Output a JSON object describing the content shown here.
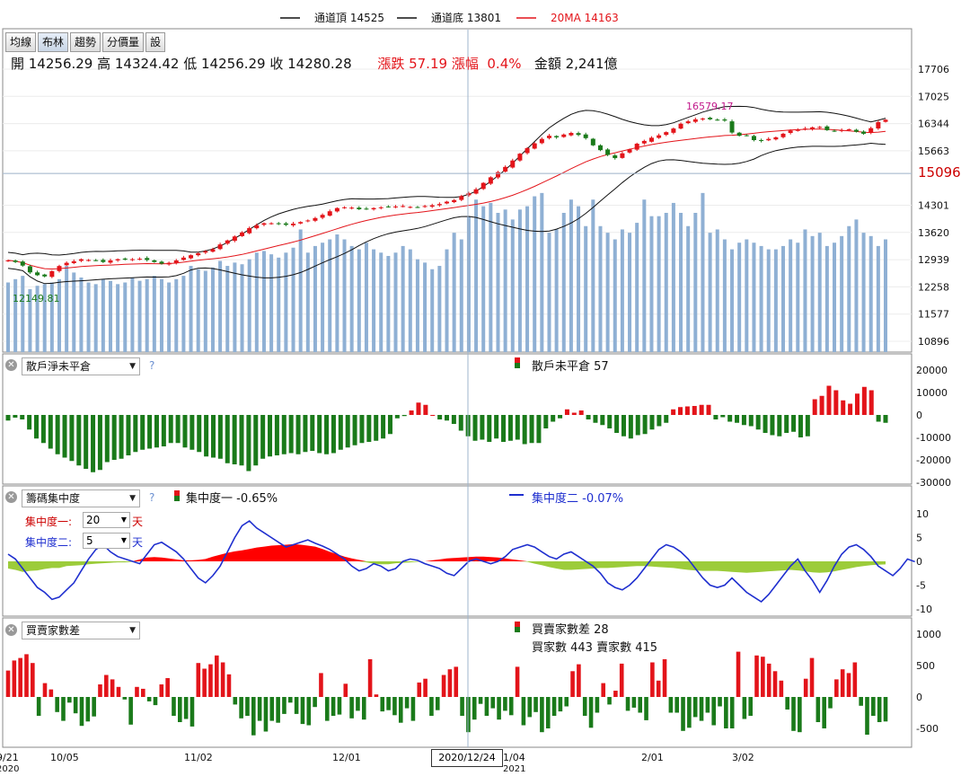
{
  "top_legend": [
    {
      "label": "通道頂 14525",
      "color": "#111111"
    },
    {
      "label": "通道底 13801",
      "color": "#111111"
    },
    {
      "label": "20MA 14163",
      "color": "#e3141a"
    }
  ],
  "tabs": [
    "均線",
    "布林",
    "趨勢",
    "分價量",
    "設"
  ],
  "ohlc": {
    "open": "開 14256.29",
    "high": "高 14324.42",
    "low": "低 14256.29",
    "close": "收 14280.28",
    "change": "漲跌 57.19",
    "pct_label": "漲幅",
    "pct": "0.4%",
    "amount": "金額 2,241億"
  },
  "panels": {
    "p2": {
      "select": "散戶淨未平倉",
      "legend": "散戶未平倉 57",
      "help": "?"
    },
    "p3": {
      "select": "籌碼集中度",
      "legend1": "集中度一 -0.65%",
      "legend2": "集中度二 -0.07%",
      "param1_label": "集中度一:",
      "param1_value": "20",
      "param2_label": "集中度二:",
      "param2_value": "5",
      "unit": "天",
      "help": "?"
    },
    "p4": {
      "select": "買賣家數差",
      "legend1": "買賣家數差 28",
      "legend2": "買家數 443 賣家數 415"
    }
  },
  "cursor_date": "2020/12/24",
  "colors": {
    "up": "#e3141a",
    "down": "#1a7a1a",
    "volume": "#8fb0d4",
    "band": "#111111",
    "ma": "#e3141a",
    "conc2": "#1f2fcf",
    "conc_neg": "#9ccc3a",
    "conc_pos": "#ff0000",
    "label": "#c1188a",
    "crosshair": "#9fb4cc"
  },
  "chart_data": [
    {
      "type": "candlestick",
      "name": "price",
      "y_ticks": [
        "17706",
        "17025",
        "16344",
        "15663",
        "15096",
        "14301",
        "13620",
        "12939",
        "12258",
        "11577",
        "10896"
      ],
      "cursor_value": "15096",
      "annotations": [
        "16579.17",
        "12149.81"
      ],
      "x_labels": [
        "9/21",
        "10/05",
        "11/02",
        "12/01",
        "2020/12/24",
        "1/04",
        "2/01",
        "3/02"
      ],
      "x_year_labels": [
        "2020",
        "2021"
      ],
      "close": [
        12920,
        12880,
        12790,
        12620,
        12550,
        12520,
        12650,
        12780,
        12860,
        12900,
        12950,
        12930,
        12920,
        12880,
        12920,
        12950,
        12940,
        12950,
        12960,
        12930,
        12880,
        12840,
        12860,
        12920,
        12990,
        13050,
        13100,
        13150,
        13200,
        13320,
        13420,
        13520,
        13620,
        13730,
        13800,
        13850,
        13850,
        13830,
        13810,
        13840,
        13880,
        13920,
        13980,
        14060,
        14150,
        14230,
        14250,
        14240,
        14200,
        14210,
        14230,
        14250,
        14260,
        14270,
        14280,
        14260,
        14250,
        14280,
        14300,
        14330,
        14390,
        14430,
        14530,
        14600,
        14700,
        14860,
        15000,
        15130,
        15260,
        15420,
        15590,
        15730,
        15850,
        15960,
        16040,
        16000,
        16070,
        16110,
        16060,
        15980,
        15800,
        15680,
        15560,
        15480,
        15600,
        15700,
        15840,
        15910,
        15990,
        16050,
        16130,
        16220,
        16340,
        16400,
        16450,
        16470,
        16450,
        16440,
        16420,
        16120,
        16040,
        16050,
        15930,
        15910,
        15960,
        16000,
        16090,
        16170,
        16190,
        16220,
        16250,
        16260,
        16180,
        16160,
        16180,
        16200,
        16140,
        16090,
        16230,
        16380,
        16440
      ],
      "volume": [
        2100,
        2200,
        2300,
        1900,
        2000,
        2050,
        2100,
        2200,
        2600,
        2400,
        2250,
        2100,
        2050,
        2200,
        2150,
        2050,
        2100,
        2250,
        2150,
        2200,
        2300,
        2200,
        2100,
        2200,
        2300,
        2600,
        2500,
        2450,
        2550,
        2750,
        2600,
        2700,
        2650,
        2800,
        3000,
        3050,
        2950,
        2850,
        3000,
        3150,
        3700,
        3000,
        3200,
        3300,
        3400,
        3550,
        3400,
        3200,
        3100,
        3300,
        3100,
        3000,
        2900,
        3000,
        3200,
        3100,
        2800,
        2700,
        2500,
        2600,
        3100,
        3600,
        3400,
        4100,
        4600,
        4400,
        4500,
        4200,
        4300,
        4000,
        4300,
        4400,
        4700,
        4800,
        3600,
        3700,
        4200,
        4600,
        4400,
        3800,
        4600,
        3800,
        3600,
        3400,
        3700,
        3600,
        3900,
        4600,
        4100,
        4100,
        4200,
        4500,
        4200,
        3800,
        4200,
        4800,
        3600,
        3700,
        3400,
        3100,
        3300,
        3400,
        3300,
        3200,
        3100,
        3100,
        3200,
        3400,
        3300,
        3700,
        3500,
        3600,
        3200,
        3300,
        3500,
        3800,
        4000,
        3600,
        3500,
        3200,
        3400
      ]
    },
    {
      "type": "bar",
      "name": "散戶淨未平倉",
      "y_ticks": [
        "20000",
        "10000",
        "0",
        "-10000",
        "-20000",
        "-30000"
      ],
      "values": [
        -2500,
        -1200,
        -2000,
        -6500,
        -10500,
        -12500,
        -15000,
        -17500,
        -19000,
        -20500,
        -22500,
        -24000,
        -25500,
        -24500,
        -21000,
        -20000,
        -19500,
        -18000,
        -16500,
        -15500,
        -15000,
        -14500,
        -14000,
        -12500,
        -12500,
        -14500,
        -15500,
        -16500,
        -18500,
        -19000,
        -19500,
        -21500,
        -22000,
        -22500,
        -25000,
        -22500,
        -19500,
        -18500,
        -18000,
        -17500,
        -17000,
        -17500,
        -16500,
        -16000,
        -17000,
        -17500,
        -17000,
        -15500,
        -14500,
        -13500,
        -12500,
        -12000,
        -11500,
        -10500,
        -8500,
        -1500,
        -500,
        2000,
        5500,
        4500,
        0,
        -2000,
        -2500,
        -4000,
        -7000,
        -9500,
        -11500,
        -11000,
        -12000,
        -10500,
        -12000,
        -11500,
        -11000,
        -13000,
        -12500,
        -12500,
        -6000,
        -3000,
        -1500,
        2500,
        1000,
        2000,
        -2000,
        -3500,
        -4500,
        -6000,
        -8000,
        -9500,
        -10500,
        -9000,
        -8500,
        -6500,
        -5000,
        -3500,
        2500,
        3500,
        3800,
        4000,
        4500,
        4500,
        -2000,
        -1000,
        -3000,
        -3500,
        -4500,
        -5000,
        -6500,
        -8000,
        -9000,
        -9500,
        -8000,
        -7500,
        -10000,
        -9500,
        7000,
        8500,
        13000,
        11000,
        6500,
        5000,
        9500,
        12500,
        11000,
        -3000,
        -3500
      ]
    },
    {
      "type": "area+line",
      "name": "籌碼集中度",
      "y_ticks": [
        "10",
        "5",
        "0",
        "-5",
        "-10"
      ],
      "series": [
        {
          "name": "集中度一",
          "values": [
            -1.5,
            -1.8,
            -2.2,
            -2.0,
            -1.9,
            -1.6,
            -1.4,
            -1.4,
            -1.0,
            -0.9,
            -0.8,
            -0.6,
            -0.5,
            -0.4,
            -0.3,
            -0.2,
            -0.2,
            -0.1,
            0.4,
            0.8,
            0.9,
            0.8,
            0.6,
            0.4,
            0.2,
            0.2,
            0.3,
            0.5,
            1.0,
            1.4,
            1.8,
            2.1,
            2.3,
            2.6,
            2.9,
            3.1,
            3.3,
            3.4,
            3.5,
            3.6,
            3.5,
            3.3,
            3.1,
            2.6,
            2.0,
            1.5,
            1.0,
            0.6,
            0.3,
            -0.2,
            -0.5,
            -0.6,
            -0.6,
            -0.4,
            -0.3,
            -0.2,
            -0.1,
            0.0,
            0.2,
            0.4,
            0.6,
            0.7,
            0.8,
            0.9,
            1.0,
            1.0,
            0.9,
            0.8,
            0.6,
            0.4,
            0.2,
            -0.1,
            -0.5,
            -0.8,
            -1.2,
            -1.5,
            -1.8,
            -1.8,
            -1.7,
            -1.6,
            -1.5,
            -1.4,
            -1.4,
            -1.3,
            -1.2,
            -1.1,
            -1.0,
            -1.0,
            -1.1,
            -1.2,
            -1.3,
            -1.4,
            -1.6,
            -1.8,
            -1.9,
            -2.0,
            -2.0,
            -2.0,
            -2.1,
            -2.2,
            -2.3,
            -2.4,
            -2.3,
            -2.2,
            -2.1,
            -2.0,
            -1.9,
            -1.8,
            -1.9,
            -2.1,
            -2.3,
            -2.4,
            -2.3,
            -2.1,
            -1.8,
            -1.5,
            -1.2,
            -1.0,
            -0.8,
            -0.7,
            -0.65
          ]
        },
        {
          "name": "集中度二",
          "values": [
            1.5,
            0.5,
            -1.5,
            -3.5,
            -5.5,
            -6.5,
            -8.0,
            -7.5,
            -6.0,
            -4.5,
            -2.0,
            0.5,
            2.5,
            3.5,
            2.0,
            1.0,
            0.5,
            0.0,
            -0.5,
            1.5,
            3.5,
            4.0,
            3.0,
            2.0,
            0.5,
            -1.5,
            -3.5,
            -4.5,
            -3.0,
            -1.0,
            2.0,
            5.0,
            7.5,
            8.5,
            7.0,
            6.0,
            5.0,
            4.0,
            3.0,
            3.5,
            4.0,
            4.5,
            3.8,
            3.2,
            2.5,
            1.5,
            0.5,
            -1.0,
            -2.0,
            -1.5,
            -0.5,
            -1.0,
            -2.0,
            -1.5,
            0.0,
            0.5,
            0.2,
            -0.5,
            -1.0,
            -1.5,
            -2.5,
            -3.0,
            -1.5,
            0.0,
            0.5,
            0.0,
            -0.5,
            0.0,
            1.0,
            2.5,
            3.0,
            3.5,
            3.0,
            2.0,
            1.0,
            0.5,
            1.5,
            2.0,
            1.0,
            0.0,
            -1.0,
            -2.5,
            -4.5,
            -5.5,
            -6.0,
            -5.0,
            -3.5,
            -1.5,
            0.5,
            2.5,
            3.5,
            3.0,
            2.0,
            0.5,
            -1.5,
            -3.5,
            -5.0,
            -5.5,
            -5.0,
            -3.5,
            -5.0,
            -6.5,
            -7.5,
            -8.5,
            -7.0,
            -5.0,
            -3.0,
            -1.0,
            0.5,
            -2.0,
            -4.0,
            -6.5,
            -4.0,
            -1.0,
            1.5,
            3.0,
            3.5,
            2.5,
            1.0,
            -1.0,
            -2.0,
            -3.0,
            -1.5,
            0.5,
            -0.07
          ]
        }
      ]
    },
    {
      "type": "bar",
      "name": "買賣家數差",
      "y_ticks": [
        "1000",
        "500",
        "0",
        "-500"
      ],
      "values": [
        420,
        580,
        620,
        680,
        540,
        -300,
        220,
        120,
        -240,
        -380,
        -90,
        -260,
        -460,
        -390,
        -310,
        200,
        350,
        280,
        160,
        -40,
        -440,
        160,
        130,
        -70,
        -130,
        200,
        300,
        -300,
        -400,
        -350,
        -470,
        540,
        450,
        520,
        660,
        550,
        360,
        -120,
        -340,
        -300,
        -610,
        -380,
        -550,
        -380,
        -410,
        -270,
        -90,
        -270,
        -430,
        -450,
        -160,
        380,
        -380,
        -300,
        -280,
        210,
        -340,
        -220,
        -360,
        600,
        40,
        -230,
        -210,
        -290,
        -410,
        -180,
        -380,
        230,
        290,
        -300,
        -210,
        350,
        440,
        480,
        -300,
        -560,
        -360,
        -110,
        -300,
        -180,
        -360,
        -220,
        -290,
        480,
        -450,
        -320,
        -240,
        -560,
        -500,
        -300,
        -230,
        -150,
        410,
        520,
        -300,
        -490,
        -250,
        220,
        -120,
        100,
        530,
        -220,
        -170,
        -250,
        -370,
        550,
        260,
        600,
        -250,
        -250,
        -540,
        -490,
        -320,
        -380,
        -250,
        -450,
        -150,
        -500,
        -500,
        720,
        -350,
        -300,
        660,
        640,
        530,
        410,
        260,
        -200,
        -540,
        -560,
        290,
        620,
        -400,
        -500,
        -180,
        280,
        440,
        380,
        550,
        -140,
        -600,
        -300,
        -400,
        -390
      ]
    }
  ]
}
